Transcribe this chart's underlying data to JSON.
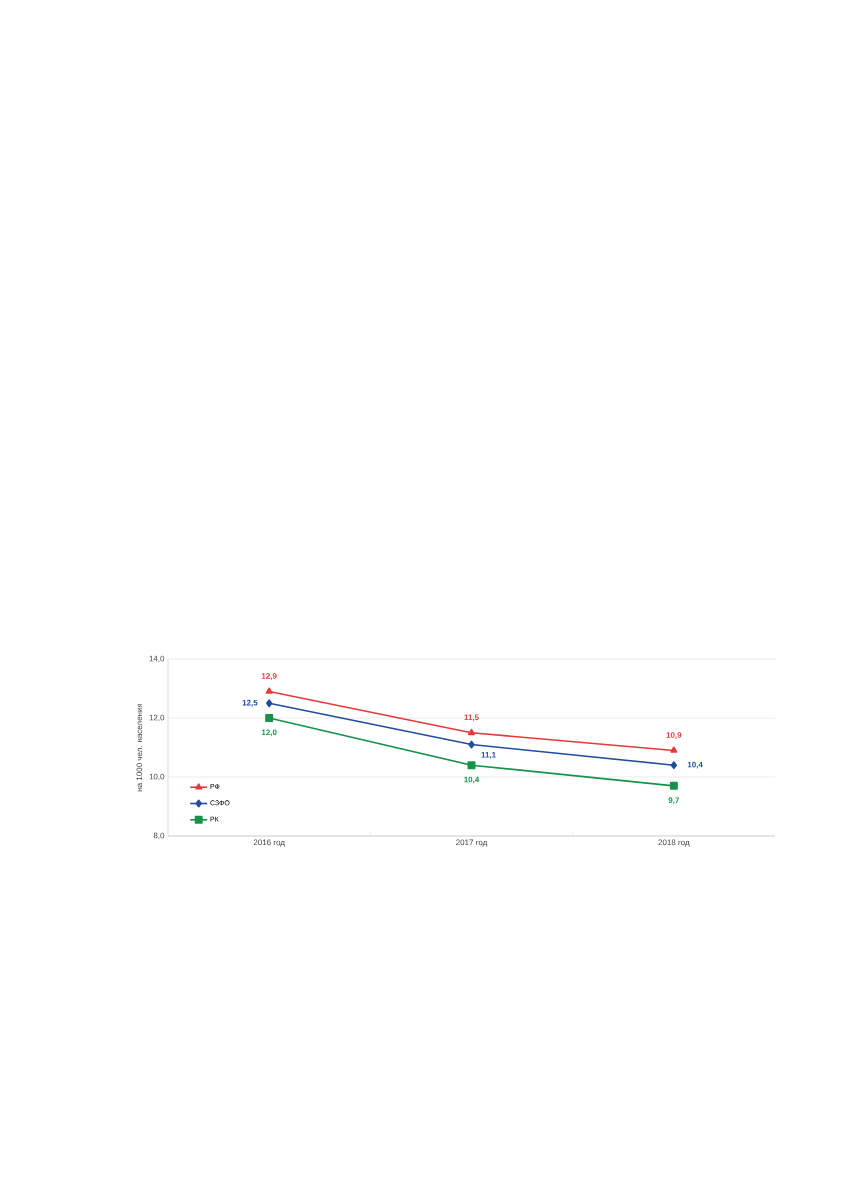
{
  "chart_data": {
    "type": "line",
    "ylabel": "на 1000 чел. населения",
    "categories": [
      "2016 год",
      "2017 год",
      "2018 год"
    ],
    "series": [
      {
        "name": "РФ",
        "color": "#e8393a",
        "marker": "triangle",
        "values": [
          12.9,
          11.5,
          10.9
        ],
        "value_labels": [
          "12,9",
          "11,5",
          "10,9"
        ]
      },
      {
        "name": "СЗФО",
        "color": "#1f4e9e",
        "marker": "diamond",
        "values": [
          12.5,
          11.1,
          10.4
        ],
        "value_labels": [
          "12,5",
          "11,1",
          "10,4"
        ]
      },
      {
        "name": "РК",
        "color": "#17924a",
        "marker": "square",
        "values": [
          12.0,
          10.4,
          9.7
        ],
        "value_labels": [
          "12,0",
          "10,4",
          "9,7"
        ]
      }
    ],
    "ylim": [
      8,
      14
    ],
    "yticks": [
      {
        "value": 8,
        "label": "8,0"
      },
      {
        "value": 10,
        "label": "10,0"
      },
      {
        "value": 12,
        "label": "12,0"
      },
      {
        "value": 14,
        "label": "14,0"
      }
    ],
    "grid": "y",
    "legend": "bottom left",
    "line_style": "solid"
  }
}
